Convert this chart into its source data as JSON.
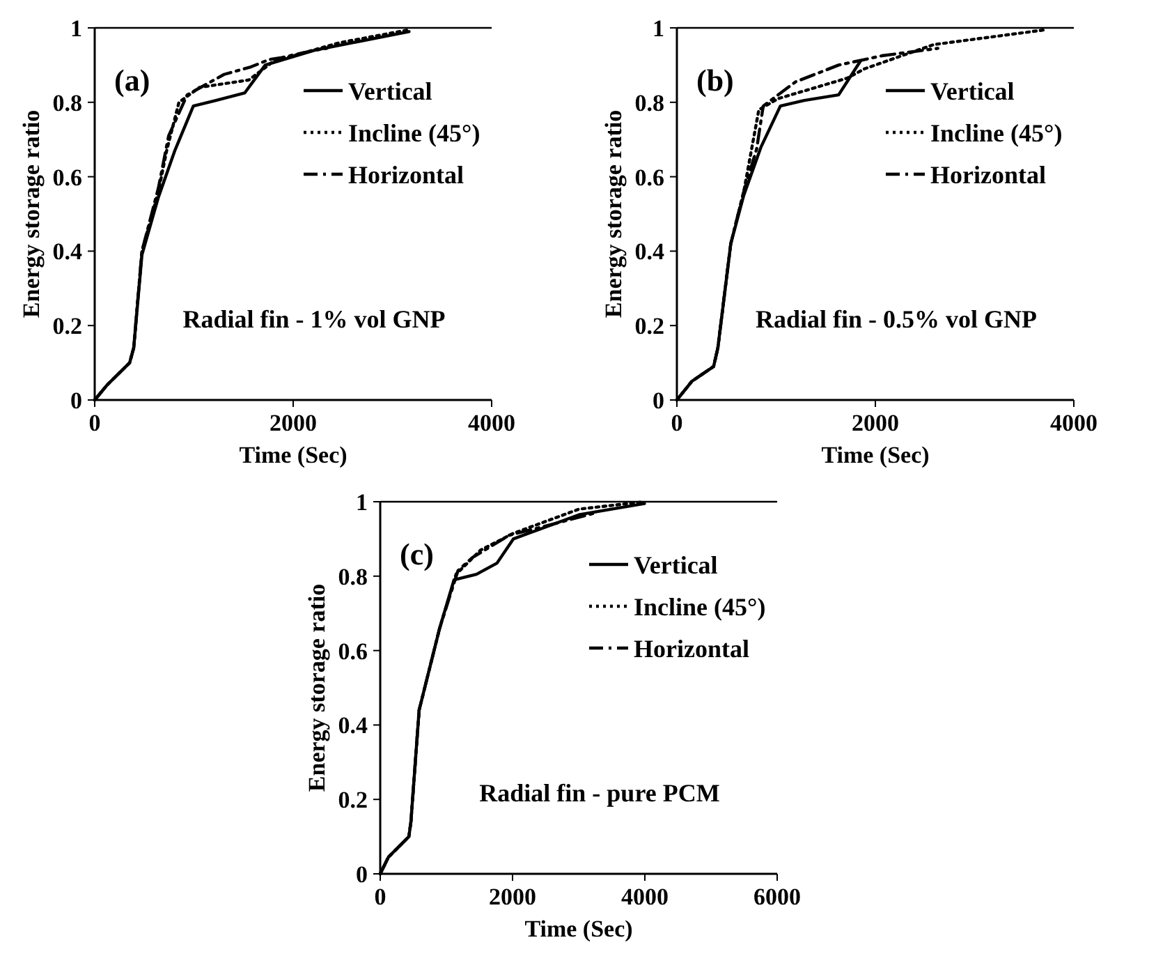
{
  "chart_data": [
    {
      "type": "line",
      "xlabel": "Time (Sec)",
      "ylabel": "Energy storage ratio",
      "annotations": [
        "(a)",
        "Radial fin - 1% vol GNP"
      ],
      "xlim": [
        0,
        4000
      ],
      "xticks": [
        0,
        2000,
        4000
      ],
      "ylim": [
        0,
        1
      ],
      "yticks": [
        0,
        0.2,
        0.4,
        0.6,
        0.8,
        1
      ],
      "legend": "top right",
      "grid": false,
      "series": [
        {
          "name": "Vertical",
          "color": "#000000",
          "line_style": "solid",
          "x": [
            0,
            124,
            352,
            393,
            476,
            642,
            807,
            994,
            1222,
            1511,
            1718,
            2215,
            3168
          ],
          "values": [
            0,
            0.04,
            0.1,
            0.14,
            0.39,
            0.545,
            0.67,
            0.79,
            0.805,
            0.825,
            0.9,
            0.94,
            0.99
          ]
        },
        {
          "name": "Incline (45°)",
          "color": "#000000",
          "line_style": "dotted",
          "x": [
            0,
            124,
            352,
            393,
            476,
            642,
            725,
            849,
            1056,
            1553,
            1801,
            2464,
            3168
          ],
          "values": [
            0,
            0.04,
            0.1,
            0.14,
            0.4,
            0.56,
            0.67,
            0.8,
            0.84,
            0.86,
            0.91,
            0.96,
            0.995
          ]
        },
        {
          "name": "Horizontal",
          "color": "#000000",
          "line_style": "dashed",
          "x": [
            0,
            124,
            352,
            393,
            476,
            642,
            745,
            932,
            1304,
            1573,
            1760,
            1884,
            2215,
            2340
          ],
          "values": [
            0,
            0.04,
            0.1,
            0.14,
            0.4,
            0.57,
            0.71,
            0.82,
            0.875,
            0.895,
            0.915,
            0.92,
            0.94,
            0.945
          ]
        }
      ]
    },
    {
      "type": "line",
      "xlabel": "Time (Sec)",
      "ylabel": "Energy storage ratio",
      "annotations": [
        "(b)",
        "Radial fin - 0.5% vol GNP"
      ],
      "xlim": [
        0,
        4000
      ],
      "xticks": [
        0,
        2000,
        4000
      ],
      "ylim": [
        0,
        1
      ],
      "yticks": [
        0,
        0.2,
        0.4,
        0.6,
        0.8,
        1
      ],
      "legend": "top right",
      "grid": false,
      "series": [
        {
          "name": "Vertical",
          "color": "#000000",
          "line_style": "solid",
          "x": [
            0,
            150,
            370,
            413,
            543,
            674,
            848,
            1043,
            1283,
            1630,
            1848
          ],
          "values": [
            0,
            0.05,
            0.09,
            0.14,
            0.42,
            0.55,
            0.68,
            0.79,
            0.805,
            0.82,
            0.91
          ]
        },
        {
          "name": "Incline (45°)",
          "color": "#000000",
          "line_style": "dotted",
          "x": [
            0,
            150,
            370,
            413,
            543,
            674,
            826,
            1022,
            1717,
            1891,
            2587,
            3717
          ],
          "values": [
            0,
            0.05,
            0.09,
            0.14,
            0.42,
            0.56,
            0.78,
            0.81,
            0.865,
            0.89,
            0.955,
            0.995
          ]
        },
        {
          "name": "Horizontal",
          "color": "#000000",
          "line_style": "dashed",
          "x": [
            0,
            150,
            370,
            413,
            543,
            674,
            804,
            870,
            1196,
            1630,
            2065,
            2630
          ],
          "values": [
            0,
            0.05,
            0.09,
            0.14,
            0.42,
            0.56,
            0.675,
            0.79,
            0.855,
            0.9,
            0.925,
            0.945
          ]
        }
      ]
    },
    {
      "type": "line",
      "xlabel": "Time (Sec)",
      "ylabel": "Energy storage ratio",
      "annotations": [
        "(c)",
        "Radial fin - pure PCM"
      ],
      "xlim": [
        0,
        6000
      ],
      "xticks": [
        0,
        2000,
        4000,
        6000
      ],
      "ylim": [
        0,
        1
      ],
      "yticks": [
        0,
        0.2,
        0.4,
        0.6,
        0.8,
        1
      ],
      "legend": "top right",
      "grid": false,
      "series": [
        {
          "name": "Vertical",
          "color": "#000000",
          "line_style": "solid",
          "x": [
            0,
            124,
            433,
            464,
            588,
            898,
            1115,
            1455,
            1765,
            2012,
            3003,
            3994
          ],
          "values": [
            0,
            0.045,
            0.1,
            0.14,
            0.44,
            0.66,
            0.79,
            0.805,
            0.835,
            0.9,
            0.965,
            0.995
          ]
        },
        {
          "name": "Incline (45°)",
          "color": "#000000",
          "line_style": "dotted",
          "x": [
            0,
            124,
            433,
            464,
            588,
            898,
            1146,
            1517,
            2012,
            3003,
            3994
          ],
          "values": [
            0,
            0.045,
            0.1,
            0.14,
            0.44,
            0.66,
            0.805,
            0.87,
            0.915,
            0.98,
            1
          ]
        },
        {
          "name": "Horizontal",
          "color": "#000000",
          "line_style": "dashed",
          "x": [
            0,
            124,
            433,
            464,
            588,
            898,
            1176,
            1393,
            1950,
            2508,
            3250
          ],
          "values": [
            0,
            0.045,
            0.1,
            0.14,
            0.44,
            0.66,
            0.815,
            0.85,
            0.91,
            0.935,
            0.97
          ]
        }
      ]
    }
  ]
}
